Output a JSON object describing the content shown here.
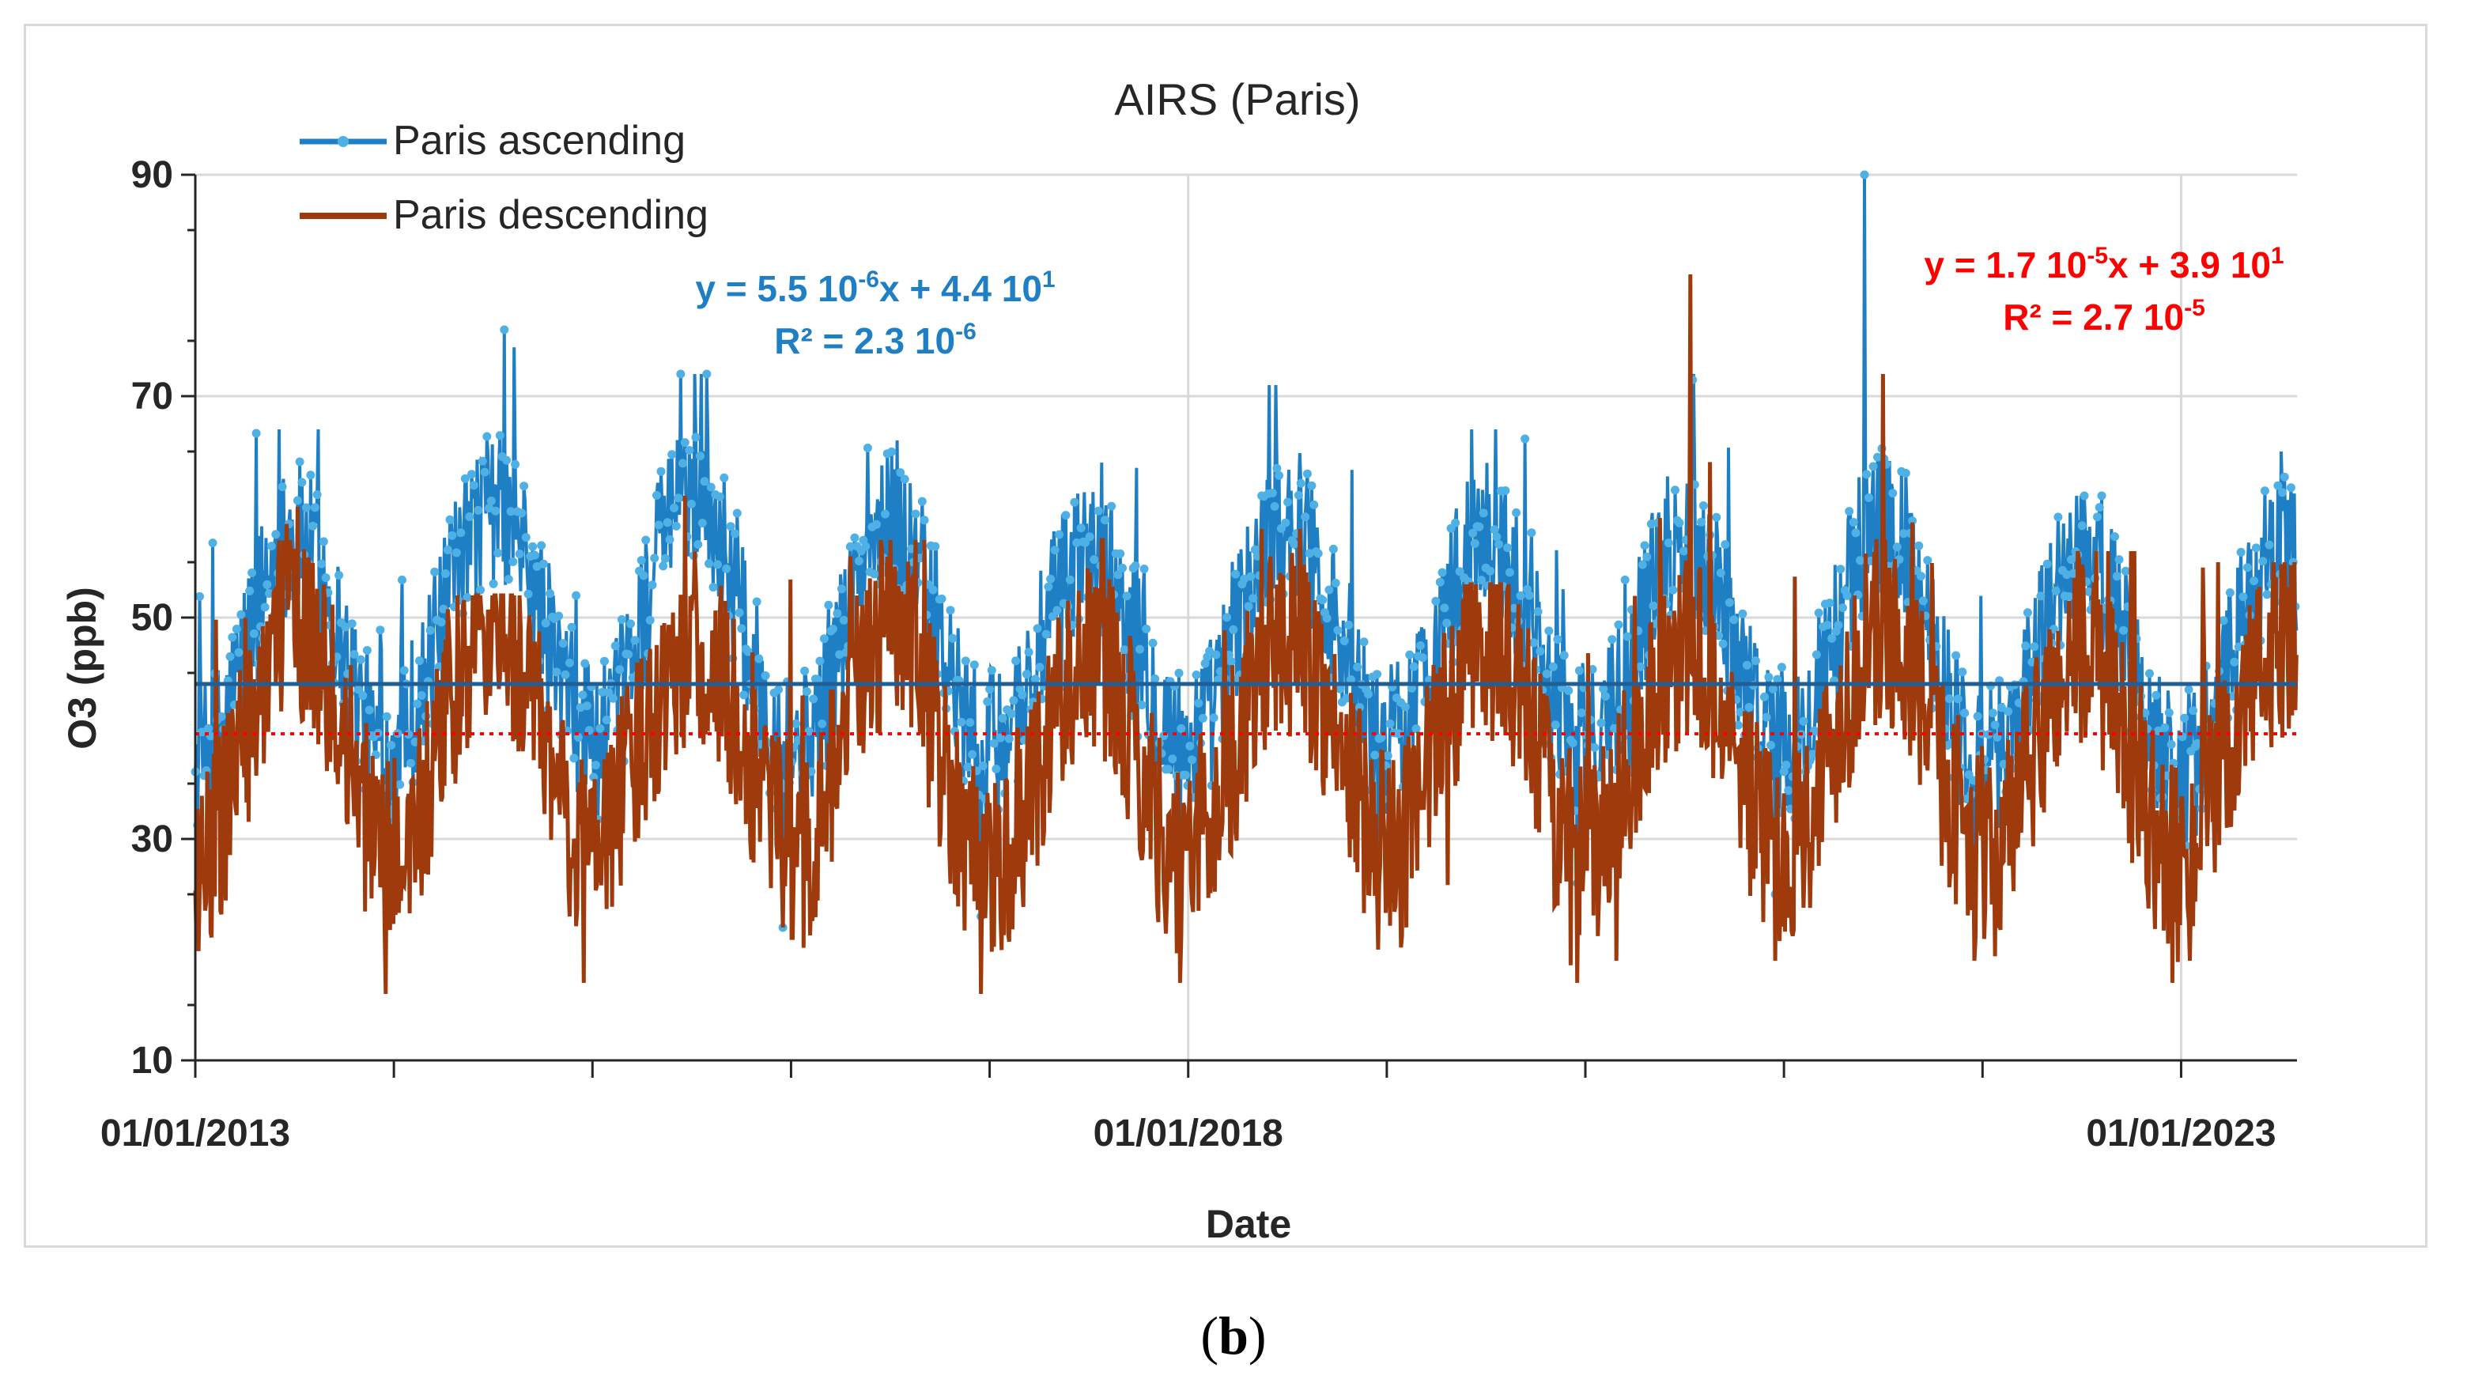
{
  "caption": {
    "open": "(",
    "letter": "b",
    "close": ")"
  },
  "chart_data": {
    "type": "line",
    "title": "AIRS (Paris)",
    "xlabel": "Date",
    "ylabel": "O3 (ppb)",
    "x_range": [
      "01/01/2013",
      "01/08/2023"
    ],
    "x_ticks": [
      "01/01/2013",
      "01/01/2018",
      "01/01/2023"
    ],
    "ylim": [
      10,
      90
    ],
    "y_ticks": [
      10,
      30,
      50,
      70,
      90
    ],
    "grid": "major",
    "legend": {
      "position": "top-left"
    },
    "series": [
      {
        "name": "Paris ascending",
        "color": "#1f7fc4",
        "marker_color": "#4fb0e6",
        "annual_max": [
          67,
          76,
          72,
          66,
          64,
          71,
          67,
          72,
          90,
          61,
          65
        ],
        "annual_min": [
          22,
          26,
          22,
          23,
          26,
          25,
          26,
          25,
          22,
          23,
          22
        ],
        "annual_mean": [
          45,
          48,
          48,
          46,
          45,
          47,
          46,
          46,
          46,
          44,
          44
        ],
        "trendline": {
          "type": "linear",
          "y_const": 44,
          "color": "#1f5f96",
          "equation": "y = 5.5 10-6x + 4.4 101",
          "r2": "R² = 2.3 10-6"
        }
      },
      {
        "name": "Paris descending",
        "color": "#9e3a0c",
        "annual_max": [
          60,
          52,
          61,
          57,
          57,
          58,
          53,
          81,
          72,
          56,
          55
        ],
        "annual_min": [
          16,
          17,
          22,
          16,
          17,
          20,
          17,
          19,
          19,
          17,
          19
        ],
        "annual_mean": [
          40,
          40,
          40,
          39,
          38,
          40,
          39,
          39,
          40,
          38,
          39
        ],
        "trendline": {
          "type": "linear",
          "y_const": 39.5,
          "color": "#ff0000",
          "style": "dotted",
          "equation": "y = 1.7 10-5x + 3.9 101",
          "r2": "R² = 2.7 10-5"
        }
      }
    ],
    "annotations": [
      {
        "series": "Paris ascending",
        "eq_main": "y = 5.5 10",
        "eq_exp1": "-6",
        "eq_mid": "x + 4.4 10",
        "eq_exp2": "1",
        "r2_main": "R² = 2.3 10",
        "r2_exp": "-6",
        "color": "#1f7fc4"
      },
      {
        "series": "Paris descending",
        "eq_main": "y = 1.7 10",
        "eq_exp1": "-5",
        "eq_mid": "x + 3.9 10",
        "eq_exp2": "1",
        "r2_main": "R² = 2.7 10",
        "r2_exp": "-5",
        "color": "#ff0000"
      }
    ]
  }
}
